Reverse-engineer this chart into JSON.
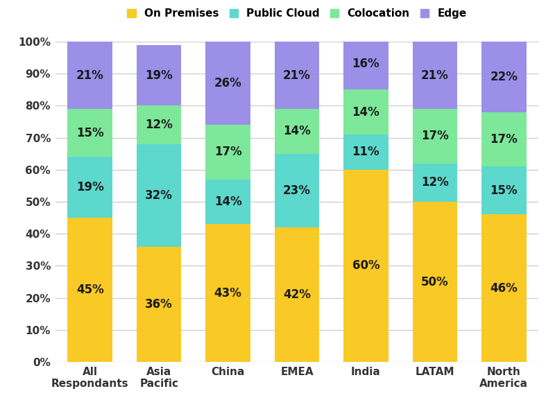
{
  "categories": [
    "All\nRespondants",
    "Asia\nPacific",
    "China",
    "EMEA",
    "India",
    "LATAM",
    "North\nAmerica"
  ],
  "series": {
    "On Premises": [
      45,
      36,
      43,
      42,
      60,
      50,
      46
    ],
    "Public Cloud": [
      19,
      32,
      14,
      23,
      11,
      12,
      15
    ],
    "Colocation": [
      15,
      12,
      17,
      14,
      14,
      17,
      17
    ],
    "Edge": [
      21,
      19,
      26,
      21,
      16,
      21,
      22
    ]
  },
  "colors": {
    "On Premises": "#F9C926",
    "Public Cloud": "#5DD8CC",
    "Colocation": "#7DE89A",
    "Edge": "#9B8FE8"
  },
  "order": [
    "On Premises",
    "Public Cloud",
    "Colocation",
    "Edge"
  ],
  "ylim": [
    0,
    100
  ],
  "yticks": [
    0,
    10,
    20,
    30,
    40,
    50,
    60,
    70,
    80,
    90,
    100
  ],
  "ytick_labels": [
    "0%",
    "10%",
    "20%",
    "30%",
    "40%",
    "50%",
    "60%",
    "70%",
    "80%",
    "90%",
    "100%"
  ],
  "background_color": "#ffffff",
  "grid_color": "#d0d0d0",
  "label_fontsize": 12,
  "tick_fontsize": 11,
  "legend_fontsize": 11,
  "bar_width": 0.65
}
